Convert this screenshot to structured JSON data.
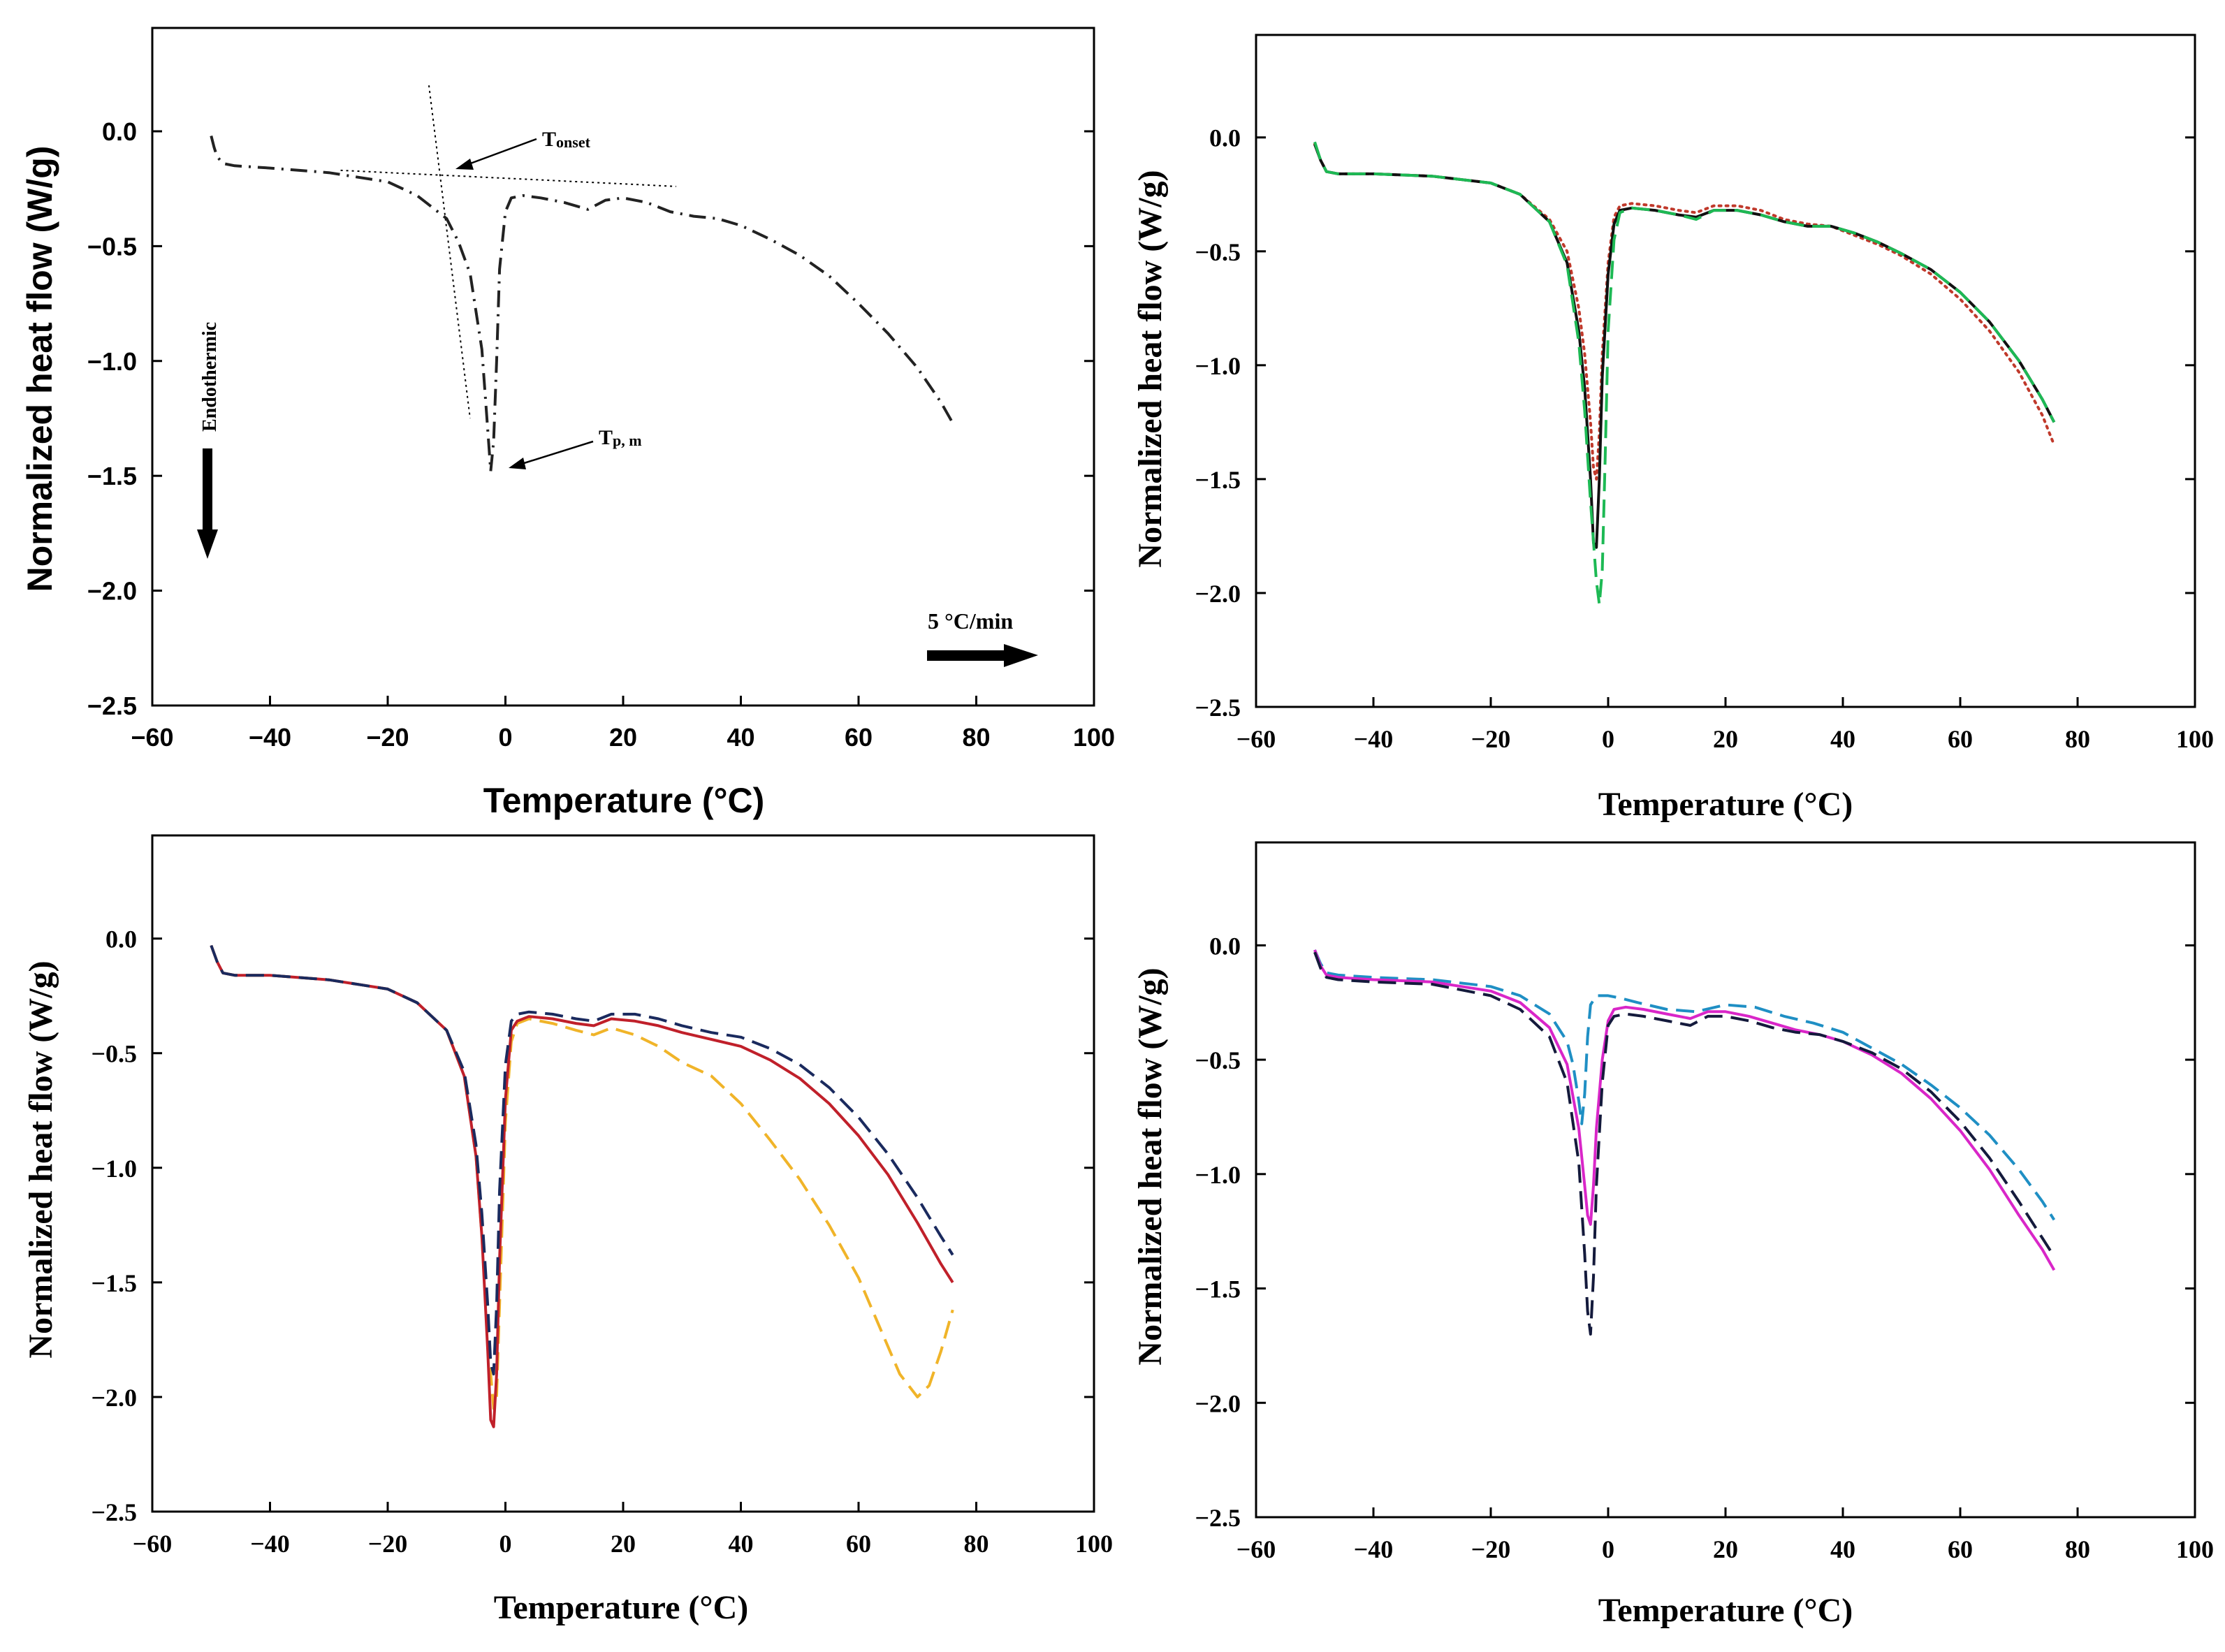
{
  "figure": {
    "background": "#ffffff"
  },
  "chart_data": [
    {
      "type": "line",
      "panel": "top-left",
      "xlabel": "Temperature (°C)",
      "ylabel": "Normalized heat flow (W/g)",
      "xlim": [
        -60,
        100
      ],
      "ylim": [
        -2.5,
        0.45
      ],
      "xticks": [
        -60,
        -40,
        -20,
        0,
        20,
        40,
        60,
        80,
        100
      ],
      "yticks": [
        0.0,
        -0.5,
        -1.0,
        -1.5,
        -2.0,
        -2.5
      ],
      "label_font": "sans",
      "series": [
        {
          "name": "DSC curve",
          "color": "#222222",
          "dash": "dashdot",
          "x": [
            -50,
            -49.5,
            -49,
            -48,
            -46,
            -40,
            -30,
            -20,
            -15,
            -10,
            -8,
            -6,
            -4,
            -3,
            -2.5,
            -2,
            -1.5,
            -1,
            0,
            1,
            3,
            6,
            10,
            14,
            17,
            20,
            24,
            28,
            32,
            36,
            40,
            45,
            50,
            55,
            60,
            65,
            70,
            74,
            76
          ],
          "y": [
            -0.02,
            -0.07,
            -0.11,
            -0.14,
            -0.15,
            -0.16,
            -0.18,
            -0.22,
            -0.28,
            -0.38,
            -0.48,
            -0.62,
            -0.95,
            -1.3,
            -1.48,
            -1.35,
            -1.0,
            -0.6,
            -0.35,
            -0.29,
            -0.28,
            -0.29,
            -0.31,
            -0.34,
            -0.3,
            -0.29,
            -0.31,
            -0.35,
            -0.37,
            -0.38,
            -0.41,
            -0.47,
            -0.54,
            -0.63,
            -0.75,
            -0.88,
            -1.03,
            -1.18,
            -1.27
          ]
        }
      ],
      "tangent_lines": [
        {
          "name": "baseline-tangent",
          "x": [
            -28,
            29
          ],
          "y": [
            -0.17,
            -0.24
          ]
        },
        {
          "name": "peak-tangent",
          "x": [
            -13,
            -6
          ],
          "y": [
            0.2,
            -1.25
          ]
        }
      ],
      "annotations": {
        "t_onset": {
          "main": "T",
          "sub": "onset"
        },
        "t_peak": {
          "main": "T",
          "sub": "p, m"
        },
        "endothermic": "Endothermic",
        "rate": "5 °C/min"
      }
    },
    {
      "type": "line",
      "panel": "top-right",
      "xlabel": "Temperature (°C)",
      "ylabel": "Normalized heat flow (W/g)",
      "xlim": [
        -60,
        100
      ],
      "ylim": [
        -2.5,
        0.45
      ],
      "xticks": [
        -60,
        -40,
        -20,
        0,
        20,
        40,
        60,
        80,
        100
      ],
      "yticks": [
        0.0,
        -0.5,
        -1.0,
        -1.5,
        -2.0,
        -2.5
      ],
      "label_font": "serif",
      "series": [
        {
          "name": "dotted-red",
          "color": "#c0392b",
          "dash": "dotted",
          "x": [
            -50,
            -49,
            -48,
            -46,
            -40,
            -30,
            -20,
            -15,
            -10,
            -7,
            -5,
            -4,
            -3,
            -2.5,
            -2,
            -1.5,
            -1,
            0,
            1,
            2,
            4,
            8,
            12,
            15,
            18,
            22,
            26,
            30,
            34,
            38,
            42,
            46,
            50,
            55,
            60,
            65,
            70,
            74,
            76
          ],
          "y": [
            -0.03,
            -0.1,
            -0.15,
            -0.16,
            -0.16,
            -0.17,
            -0.2,
            -0.25,
            -0.36,
            -0.5,
            -0.75,
            -0.95,
            -1.25,
            -1.45,
            -1.5,
            -1.3,
            -0.95,
            -0.55,
            -0.35,
            -0.3,
            -0.29,
            -0.3,
            -0.32,
            -0.33,
            -0.3,
            -0.3,
            -0.32,
            -0.36,
            -0.38,
            -0.39,
            -0.43,
            -0.47,
            -0.52,
            -0.6,
            -0.71,
            -0.85,
            -1.03,
            -1.22,
            -1.35
          ]
        },
        {
          "name": "solid-black",
          "color": "#111111",
          "dash": "solid",
          "x": [
            -50,
            -49,
            -48,
            -46,
            -40,
            -30,
            -20,
            -15,
            -10,
            -7,
            -5,
            -4,
            -3,
            -2.5,
            -2,
            -1.5,
            -1,
            0,
            1,
            2,
            4,
            8,
            12,
            15,
            18,
            22,
            26,
            30,
            34,
            38,
            42,
            46,
            50,
            55,
            60,
            65,
            70,
            74,
            76
          ],
          "y": [
            -0.03,
            -0.1,
            -0.15,
            -0.16,
            -0.16,
            -0.17,
            -0.2,
            -0.25,
            -0.37,
            -0.55,
            -0.85,
            -1.1,
            -1.5,
            -1.78,
            -1.8,
            -1.5,
            -1.05,
            -0.6,
            -0.38,
            -0.32,
            -0.31,
            -0.32,
            -0.34,
            -0.35,
            -0.32,
            -0.32,
            -0.34,
            -0.37,
            -0.39,
            -0.39,
            -0.42,
            -0.46,
            -0.51,
            -0.58,
            -0.68,
            -0.81,
            -0.98,
            -1.15,
            -1.25
          ]
        },
        {
          "name": "dashed-green",
          "color": "#1db954",
          "dash": "dashed",
          "x": [
            -50,
            -49,
            -48,
            -46,
            -40,
            -30,
            -20,
            -15,
            -10,
            -7,
            -5,
            -4,
            -3,
            -2,
            -1.5,
            -1,
            -0.5,
            0,
            1,
            2,
            4,
            8,
            12,
            15,
            18,
            22,
            26,
            30,
            34,
            38,
            42,
            46,
            50,
            55,
            60,
            65,
            70,
            74,
            76
          ],
          "y": [
            -0.02,
            -0.1,
            -0.15,
            -0.16,
            -0.16,
            -0.17,
            -0.2,
            -0.25,
            -0.37,
            -0.56,
            -0.9,
            -1.2,
            -1.6,
            -1.95,
            -2.05,
            -1.9,
            -1.4,
            -0.85,
            -0.45,
            -0.33,
            -0.31,
            -0.32,
            -0.34,
            -0.36,
            -0.32,
            -0.32,
            -0.34,
            -0.37,
            -0.39,
            -0.39,
            -0.42,
            -0.46,
            -0.51,
            -0.58,
            -0.68,
            -0.81,
            -0.98,
            -1.15,
            -1.25
          ]
        }
      ]
    },
    {
      "type": "line",
      "panel": "bottom-left",
      "xlabel": "Temperature (°C)",
      "ylabel": "Normalized heat flow (W/g)",
      "xlim": [
        -60,
        100
      ],
      "ylim": [
        -2.5,
        0.45
      ],
      "xticks": [
        -60,
        -40,
        -20,
        0,
        20,
        40,
        60,
        80,
        100
      ],
      "yticks": [
        0.0,
        -0.5,
        -1.0,
        -1.5,
        -2.0,
        -2.5
      ],
      "label_font": "serif",
      "series": [
        {
          "name": "dashed-orange",
          "color": "#f0b429",
          "dash": "dashed",
          "x": [
            -50,
            -49,
            -48,
            -46,
            -40,
            -30,
            -20,
            -15,
            -10,
            -7,
            -5,
            -4,
            -3,
            -2,
            -1.5,
            -1,
            0,
            1,
            2,
            4,
            8,
            12,
            15,
            18,
            22,
            26,
            30,
            35,
            40,
            45,
            50,
            55,
            60,
            64,
            67,
            70,
            72,
            74,
            76
          ],
          "y": [
            -0.03,
            -0.1,
            -0.15,
            -0.16,
            -0.16,
            -0.18,
            -0.22,
            -0.28,
            -0.4,
            -0.6,
            -0.95,
            -1.3,
            -1.75,
            -2.05,
            -2.0,
            -1.6,
            -0.8,
            -0.45,
            -0.37,
            -0.35,
            -0.37,
            -0.4,
            -0.42,
            -0.39,
            -0.42,
            -0.47,
            -0.54,
            -0.6,
            -0.72,
            -0.88,
            -1.05,
            -1.25,
            -1.48,
            -1.72,
            -1.9,
            -2.0,
            -1.95,
            -1.8,
            -1.62
          ]
        },
        {
          "name": "solid-red",
          "color": "#c0202a",
          "dash": "solid",
          "x": [
            -50,
            -49,
            -48,
            -46,
            -40,
            -30,
            -20,
            -15,
            -10,
            -7,
            -5,
            -4,
            -3,
            -2.5,
            -2,
            -1.5,
            -1,
            0,
            1,
            2,
            4,
            8,
            12,
            15,
            18,
            22,
            26,
            30,
            35,
            40,
            45,
            50,
            55,
            60,
            65,
            70,
            74,
            76
          ],
          "y": [
            -0.03,
            -0.1,
            -0.15,
            -0.16,
            -0.16,
            -0.18,
            -0.22,
            -0.28,
            -0.4,
            -0.6,
            -0.95,
            -1.3,
            -1.8,
            -2.1,
            -2.13,
            -1.9,
            -1.4,
            -0.7,
            -0.4,
            -0.36,
            -0.34,
            -0.35,
            -0.37,
            -0.38,
            -0.35,
            -0.36,
            -0.38,
            -0.41,
            -0.44,
            -0.47,
            -0.53,
            -0.61,
            -0.72,
            -0.86,
            -1.03,
            -1.24,
            -1.42,
            -1.5
          ]
        },
        {
          "name": "dashed-navy",
          "color": "#1a2a5e",
          "dash": "dashed",
          "x": [
            -50,
            -49,
            -48,
            -46,
            -40,
            -30,
            -20,
            -15,
            -10,
            -7,
            -5,
            -4,
            -3,
            -2.5,
            -2,
            -1.5,
            -1,
            0,
            1,
            2,
            4,
            8,
            12,
            15,
            18,
            22,
            26,
            30,
            35,
            40,
            45,
            50,
            55,
            60,
            65,
            70,
            74,
            76
          ],
          "y": [
            -0.03,
            -0.1,
            -0.15,
            -0.16,
            -0.16,
            -0.18,
            -0.22,
            -0.28,
            -0.4,
            -0.58,
            -0.9,
            -1.2,
            -1.6,
            -1.85,
            -1.9,
            -1.6,
            -1.1,
            -0.55,
            -0.36,
            -0.33,
            -0.32,
            -0.33,
            -0.35,
            -0.36,
            -0.33,
            -0.33,
            -0.35,
            -0.38,
            -0.41,
            -0.43,
            -0.48,
            -0.55,
            -0.65,
            -0.78,
            -0.94,
            -1.13,
            -1.3,
            -1.38
          ]
        }
      ]
    },
    {
      "type": "line",
      "panel": "bottom-right",
      "xlabel": "Temperature (°C)",
      "ylabel": "Normalized heat flow (W/g)",
      "xlim": [
        -60,
        100
      ],
      "ylim": [
        -2.5,
        0.45
      ],
      "xticks": [
        -60,
        -40,
        -20,
        0,
        20,
        40,
        60,
        80,
        100
      ],
      "yticks": [
        0.0,
        -0.5,
        -1.0,
        -1.5,
        -2.0,
        -2.5
      ],
      "label_font": "serif",
      "series": [
        {
          "name": "dashed-teal",
          "color": "#1f8fc4",
          "dash": "dashed",
          "x": [
            -50,
            -49,
            -48,
            -46,
            -40,
            -30,
            -20,
            -15,
            -10,
            -7,
            -6,
            -5,
            -4.5,
            -4,
            -3.5,
            -3,
            -2,
            0,
            2,
            5,
            10,
            15,
            20,
            25,
            30,
            35,
            40,
            45,
            50,
            55,
            60,
            65,
            70,
            74,
            76
          ],
          "y": [
            -0.02,
            -0.08,
            -0.12,
            -0.13,
            -0.14,
            -0.15,
            -0.18,
            -0.22,
            -0.3,
            -0.42,
            -0.52,
            -0.68,
            -0.78,
            -0.65,
            -0.4,
            -0.26,
            -0.22,
            -0.22,
            -0.23,
            -0.25,
            -0.28,
            -0.29,
            -0.26,
            -0.27,
            -0.31,
            -0.34,
            -0.38,
            -0.45,
            -0.52,
            -0.61,
            -0.71,
            -0.83,
            -0.98,
            -1.12,
            -1.2
          ]
        },
        {
          "name": "solid-magenta",
          "color": "#d926c8",
          "dash": "solid",
          "x": [
            -50,
            -49,
            -48,
            -46,
            -40,
            -30,
            -20,
            -15,
            -10,
            -7,
            -5,
            -4,
            -3.5,
            -3,
            -2.5,
            -2,
            -1,
            0,
            1,
            3,
            6,
            10,
            14,
            17,
            20,
            24,
            28,
            32,
            36,
            40,
            45,
            50,
            55,
            60,
            65,
            70,
            74,
            76
          ],
          "y": [
            -0.02,
            -0.09,
            -0.13,
            -0.14,
            -0.15,
            -0.16,
            -0.2,
            -0.25,
            -0.36,
            -0.52,
            -0.8,
            -1.05,
            -1.18,
            -1.22,
            -1.05,
            -0.8,
            -0.5,
            -0.33,
            -0.28,
            -0.27,
            -0.28,
            -0.3,
            -0.32,
            -0.29,
            -0.29,
            -0.31,
            -0.34,
            -0.37,
            -0.39,
            -0.42,
            -0.48,
            -0.56,
            -0.67,
            -0.81,
            -0.98,
            -1.18,
            -1.33,
            -1.42
          ]
        },
        {
          "name": "dashed-navy",
          "color": "#141a3c",
          "dash": "dashed",
          "x": [
            -50,
            -49,
            -48,
            -46,
            -40,
            -30,
            -20,
            -15,
            -10,
            -7,
            -5,
            -4,
            -3.5,
            -3,
            -2.5,
            -2,
            -1,
            0,
            1,
            3,
            6,
            10,
            14,
            17,
            20,
            24,
            28,
            32,
            36,
            40,
            45,
            50,
            55,
            60,
            65,
            70,
            74,
            76
          ],
          "y": [
            -0.03,
            -0.1,
            -0.14,
            -0.15,
            -0.16,
            -0.17,
            -0.22,
            -0.28,
            -0.4,
            -0.6,
            -0.95,
            -1.35,
            -1.6,
            -1.7,
            -1.45,
            -1.05,
            -0.6,
            -0.35,
            -0.31,
            -0.3,
            -0.31,
            -0.33,
            -0.35,
            -0.31,
            -0.31,
            -0.33,
            -0.36,
            -0.38,
            -0.39,
            -0.42,
            -0.47,
            -0.54,
            -0.64,
            -0.77,
            -0.93,
            -1.12,
            -1.28,
            -1.36
          ]
        }
      ]
    }
  ]
}
